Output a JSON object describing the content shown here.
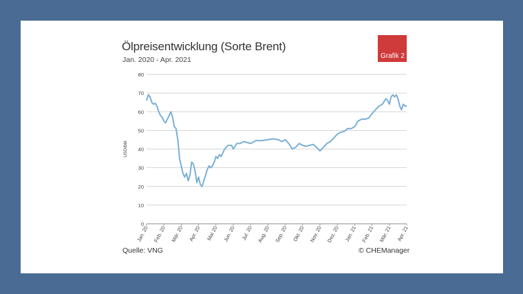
{
  "header": {
    "title": "Ölpreisentwicklung (Sorte Brent)",
    "subtitle": "Jan. 2020 - Apr. 2021",
    "badge": "Grafik 2"
  },
  "footer": {
    "source": "Quelle: VNG",
    "copyright": "© CHEManager"
  },
  "chart_data": {
    "type": "line",
    "ylabel": "USD/bbl",
    "ylim": [
      0,
      80
    ],
    "yticks": [
      0,
      10,
      20,
      30,
      40,
      50,
      60,
      70,
      80
    ],
    "x_tick_labels": [
      "Jan. 20",
      "Feb. 20",
      "Mär. 20",
      "Apr. 20",
      "Mai 20",
      "Jun. 20",
      "Jul. 20",
      "Aug. 20",
      "Sep. 20",
      "Okt. 20",
      "Nov. 20",
      "Dez. 20",
      "Jan. 21",
      "Feb. 21",
      "Mär. 21",
      "Apr. 21"
    ],
    "grid": "horizontal",
    "line_color": "#7aafd6",
    "series": [
      {
        "x": [
          0,
          0.1,
          0.2,
          0.3,
          0.4,
          0.5,
          0.6,
          0.7,
          0.8,
          0.9,
          1.0,
          1.1,
          1.2,
          1.3,
          1.4,
          1.5,
          1.6,
          1.7,
          1.8,
          1.9,
          2.0,
          2.1,
          2.2,
          2.3,
          2.4,
          2.5,
          2.6,
          2.7,
          2.8,
          2.9,
          3.0,
          3.1,
          3.2,
          3.3,
          3.4,
          3.5,
          3.6,
          3.7,
          3.8,
          3.9,
          4.0,
          4.1,
          4.2,
          4.3,
          4.5,
          4.7,
          4.9,
          5.0,
          5.2,
          5.4,
          5.6,
          5.8,
          6.0,
          6.3,
          6.6,
          7.0,
          7.3,
          7.6,
          7.8,
          8.0,
          8.2,
          8.4,
          8.6,
          8.8,
          9.0,
          9.2,
          9.4,
          9.6,
          9.8,
          10.0,
          10.2,
          10.4,
          10.6,
          10.8,
          11.0,
          11.2,
          11.4,
          11.6,
          11.8,
          12.0,
          12.2,
          12.4,
          12.6,
          12.8,
          13.0,
          13.2,
          13.4,
          13.6,
          13.8,
          13.9,
          14.0,
          14.1,
          14.2,
          14.3,
          14.4,
          14.5,
          14.6,
          14.7,
          14.8,
          14.9,
          15.0
        ],
        "y": [
          66,
          69,
          68,
          65,
          64,
          64.5,
          63,
          60,
          58,
          57,
          55,
          54,
          56,
          58,
          60,
          57,
          52,
          51,
          45,
          35,
          31,
          27,
          25,
          27,
          23,
          26,
          33,
          32,
          28,
          22,
          25,
          21,
          20,
          23,
          26,
          29,
          31,
          30,
          31,
          33,
          36,
          35,
          37,
          36,
          40,
          42,
          42,
          40,
          43,
          43,
          44,
          43.5,
          43,
          44.5,
          44.5,
          45,
          45.5,
          45,
          44,
          45,
          43,
          40,
          41,
          43,
          42,
          41.5,
          42,
          42.5,
          41,
          39,
          41,
          43,
          44,
          46,
          48,
          49,
          49.5,
          51,
          51,
          52,
          55,
          56,
          56,
          56.5,
          59,
          61,
          63,
          64,
          67,
          66,
          64,
          68,
          69,
          68,
          69,
          67,
          63,
          61,
          64,
          63,
          63
        ]
      }
    ]
  }
}
